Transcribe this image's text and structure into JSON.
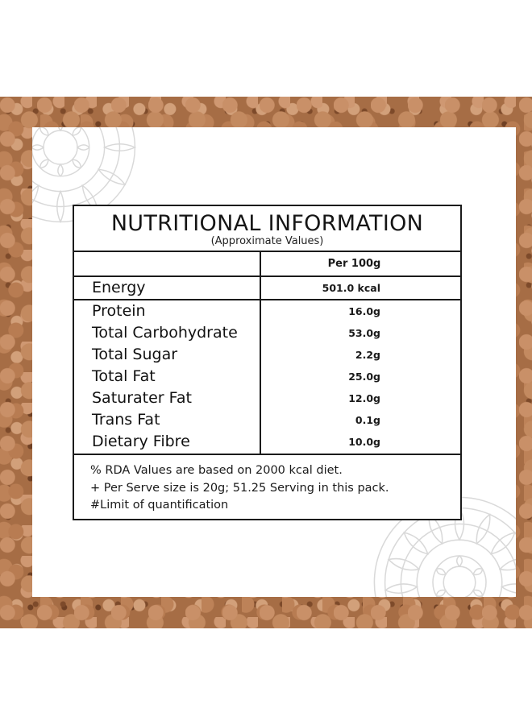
{
  "panel": {
    "title": "NUTRITIONAL INFORMATION",
    "subtitle": "(Approximate Values)",
    "column_header": "Per 100g",
    "rows": [
      {
        "label": "Energy",
        "value": "501.0 kcal"
      },
      {
        "label": "Protein",
        "value": "16.0g"
      },
      {
        "label": "Total Carbohydrate",
        "value": "53.0g"
      },
      {
        "label": "Total Sugar",
        "value": "2.2g"
      },
      {
        "label": "Total Fat",
        "value": "25.0g"
      },
      {
        "label": "Saturater Fat",
        "value": "12.0g"
      },
      {
        "label": "Trans Fat",
        "value": "0.1g"
      },
      {
        "label": "Dietary Fibre",
        "value": "10.0g"
      }
    ],
    "notes": [
      "% RDA Values are based on 2000 kcal diet.",
      "+ Per Serve size is 20g; 51.25 Serving in this pack.",
      "#Limit of quantification"
    ]
  },
  "colors": {
    "border": "#1b1b1b",
    "background_texture": "#a66d45",
    "card": "#ffffff",
    "mandala": "#d9d9d9"
  }
}
